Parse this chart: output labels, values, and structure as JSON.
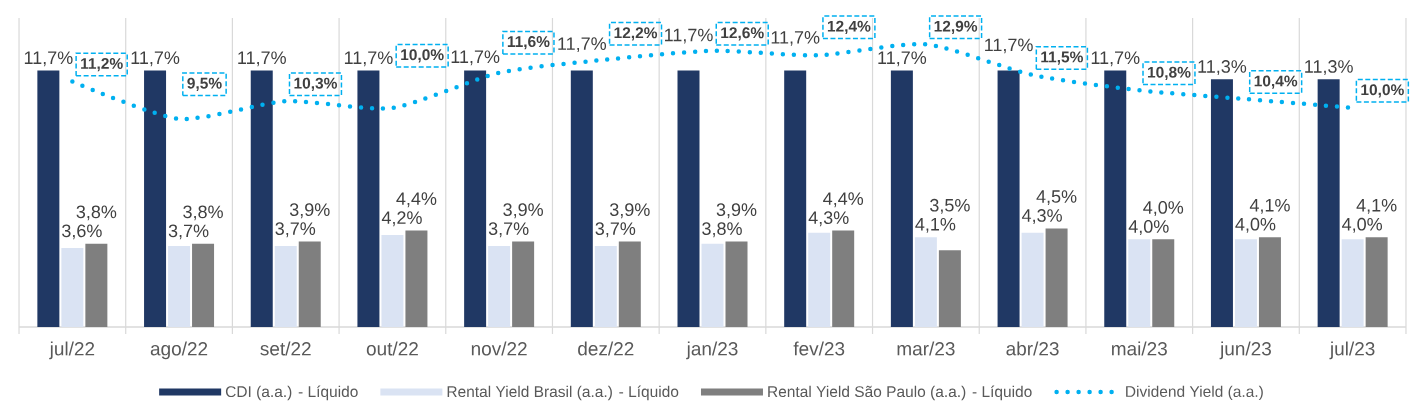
{
  "chart_data": {
    "type": "bar",
    "categories": [
      "jul/22",
      "ago/22",
      "set/22",
      "out/22",
      "nov/22",
      "dez/22",
      "jan/23",
      "fev/23",
      "mar/23",
      "abr/23",
      "mai/23",
      "jun/23",
      "jul/23"
    ],
    "ylim": [
      0,
      14.1
    ],
    "grid": "x",
    "legend": "bottom",
    "series": [
      {
        "name": "CDI (a.a.) - Líquido",
        "color": "#203864",
        "values": [
          11.7,
          11.7,
          11.7,
          11.7,
          11.7,
          11.7,
          11.7,
          11.7,
          11.7,
          11.7,
          11.7,
          11.3,
          11.3
        ],
        "value_labels": [
          "11,7%",
          "11,7%",
          "11,7%",
          "11,7%",
          "11,7%",
          "11,7%",
          "11,7%",
          "11,7%",
          "11,7%",
          "11,7%",
          "11,7%",
          "11,3%",
          "11,3%"
        ]
      },
      {
        "name": "Rental Yield Brasil (a.a.) - Líquido",
        "color": "#dae3f3",
        "values": [
          3.6,
          3.7,
          3.7,
          4.2,
          3.7,
          3.7,
          3.8,
          4.3,
          4.1,
          4.3,
          4.0,
          4.0,
          4.0
        ],
        "value_labels": [
          "3,6%",
          "3,7%",
          "3,7%",
          "4,2%",
          "3,7%",
          "3,7%",
          "3,8%",
          "4,3%",
          "4,1%",
          "4,3%",
          "4,0%",
          "4,0%",
          "4,0%"
        ]
      },
      {
        "name": "Rental Yield São Paulo (a.a.) - Líquido",
        "color": "#7f7f7f",
        "values": [
          3.8,
          3.8,
          3.9,
          4.4,
          3.9,
          3.9,
          3.9,
          4.4,
          3.5,
          4.5,
          4.0,
          4.1,
          4.1
        ],
        "value_labels": [
          "3,8%",
          "3,8%",
          "3,9%",
          "4,4%",
          "3,9%",
          "3,9%",
          "3,9%",
          "4,4%",
          "3,5%",
          "4,5%",
          "4,0%",
          "4,1%",
          "4,1%"
        ]
      },
      {
        "name": "Dividend Yield (a.a.)",
        "type": "line",
        "color": "#00b0f0",
        "line_style": "dotted",
        "values": [
          11.2,
          9.5,
          10.3,
          10.0,
          11.6,
          12.2,
          12.6,
          12.4,
          12.9,
          11.5,
          10.8,
          10.4,
          10.0
        ],
        "value_labels": [
          "11,2%",
          "9,5%",
          "10,3%",
          "10,0%",
          "11,6%",
          "12,2%",
          "12,6%",
          "12,4%",
          "12,9%",
          "11,5%",
          "10,8%",
          "10,4%",
          "10,0%"
        ]
      }
    ]
  }
}
